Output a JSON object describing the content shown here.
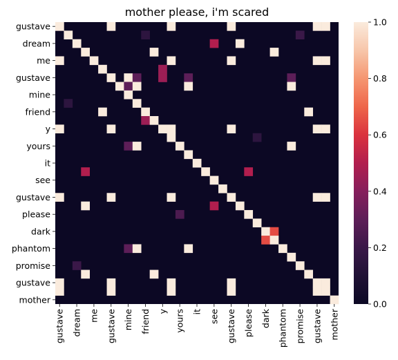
{
  "chart_data": {
    "type": "heatmap",
    "title": "mother please, i'm scared",
    "tokens": [
      "gustave",
      "dream",
      "me",
      "gustave",
      "mine",
      "friend",
      "y",
      "yours",
      "it",
      "see",
      "gustave",
      "please",
      "dark",
      "phantom",
      "promise",
      "gustave",
      "mother"
    ],
    "row_labels": [
      "gustave",
      "dream",
      "me",
      "gustave",
      "mine",
      "friend",
      "y",
      "yours",
      "it",
      "see",
      "gustave",
      "please",
      "dark",
      "phantom",
      "promise",
      "gustave",
      "mother"
    ],
    "col_labels": [
      "gustave",
      "dream",
      "me",
      "gustave",
      "mine",
      "friend",
      "y",
      "yours",
      "it",
      "see",
      "gustave",
      "please",
      "dark",
      "phantom",
      "promise",
      "gustave",
      "mother"
    ],
    "row_tick_step": 2,
    "col_tick_step": 2,
    "cells": [
      [
        0,
        0,
        1
      ],
      [
        0,
        6,
        1
      ],
      [
        0,
        13,
        1
      ],
      [
        0,
        20,
        1
      ],
      [
        0,
        30,
        1
      ],
      [
        0,
        31,
        1
      ],
      [
        1,
        1,
        1
      ],
      [
        1,
        10,
        0.15
      ],
      [
        1,
        28,
        0.2
      ],
      [
        2,
        2,
        1
      ],
      [
        2,
        18,
        0.5
      ],
      [
        2,
        21,
        1
      ],
      [
        3,
        3,
        1
      ],
      [
        3,
        11,
        1
      ],
      [
        3,
        25,
        1
      ],
      [
        4,
        0,
        1
      ],
      [
        4,
        4,
        1
      ],
      [
        4,
        13,
        1
      ],
      [
        4,
        20,
        1
      ],
      [
        4,
        30,
        1
      ],
      [
        4,
        31,
        1
      ],
      [
        5,
        5,
        1
      ],
      [
        5,
        12,
        0.45
      ],
      [
        6,
        6,
        1
      ],
      [
        6,
        8,
        1
      ],
      [
        6,
        9,
        0.3
      ],
      [
        6,
        12,
        0.45
      ],
      [
        6,
        15,
        0.3
      ],
      [
        6,
        27,
        0.3
      ],
      [
        7,
        7,
        1
      ],
      [
        7,
        8,
        0.3
      ],
      [
        7,
        9,
        1
      ],
      [
        7,
        15,
        1
      ],
      [
        7,
        27,
        1
      ],
      [
        8,
        8,
        1
      ],
      [
        9,
        1,
        0.15
      ],
      [
        9,
        9,
        1
      ],
      [
        10,
        5,
        1
      ],
      [
        10,
        10,
        1
      ],
      [
        10,
        29,
        1
      ],
      [
        11,
        10,
        0.45
      ],
      [
        11,
        11,
        1
      ],
      [
        12,
        0,
        1
      ],
      [
        12,
        6,
        1
      ],
      [
        12,
        12,
        1
      ],
      [
        12,
        13,
        1
      ],
      [
        12,
        20,
        1
      ],
      [
        12,
        30,
        1
      ],
      [
        12,
        31,
        1
      ],
      [
        13,
        13,
        1
      ],
      [
        13,
        23,
        0.15
      ],
      [
        14,
        8,
        0.3
      ],
      [
        14,
        9,
        1
      ],
      [
        14,
        14,
        1
      ],
      [
        14,
        27,
        1
      ],
      [
        15,
        15,
        1
      ],
      [
        16,
        16,
        1
      ],
      [
        17,
        3,
        0.5
      ],
      [
        17,
        17,
        1
      ],
      [
        17,
        22,
        0.5
      ],
      [
        18,
        18,
        1
      ],
      [
        19,
        19,
        1
      ],
      [
        20,
        0,
        1
      ],
      [
        20,
        6,
        1
      ],
      [
        20,
        13,
        1
      ],
      [
        20,
        20,
        1
      ],
      [
        20,
        30,
        1
      ],
      [
        20,
        31,
        1
      ],
      [
        21,
        3,
        1
      ],
      [
        21,
        18,
        0.5
      ],
      [
        21,
        21,
        1
      ],
      [
        22,
        14,
        0.25
      ],
      [
        22,
        22,
        1
      ],
      [
        23,
        23,
        1
      ],
      [
        24,
        24,
        1
      ],
      [
        24,
        25,
        0.65
      ],
      [
        25,
        24,
        0.65
      ],
      [
        25,
        25,
        1
      ],
      [
        26,
        8,
        0.3
      ],
      [
        26,
        9,
        1
      ],
      [
        26,
        15,
        1
      ],
      [
        26,
        26,
        1
      ],
      [
        27,
        27,
        1
      ],
      [
        28,
        2,
        0.2
      ],
      [
        28,
        28,
        1
      ],
      [
        29,
        3,
        1
      ],
      [
        29,
        11,
        1
      ],
      [
        29,
        29,
        1
      ],
      [
        30,
        0,
        1
      ],
      [
        30,
        6,
        1
      ],
      [
        30,
        13,
        1
      ],
      [
        30,
        20,
        1
      ],
      [
        30,
        30,
        1
      ],
      [
        30,
        31,
        1
      ],
      [
        31,
        0,
        1
      ],
      [
        31,
        6,
        1
      ],
      [
        31,
        13,
        1
      ],
      [
        31,
        20,
        1
      ],
      [
        31,
        30,
        1
      ],
      [
        31,
        31,
        1
      ],
      [
        32,
        32,
        1
      ]
    ],
    "colorbar": {
      "vmin": 0,
      "vmax": 1,
      "ticks": [
        "0.0",
        "0.2",
        "0.4",
        "0.6",
        "0.8",
        "1.0"
      ],
      "tick_values": [
        0,
        0.2,
        0.4,
        0.6,
        0.8,
        1.0
      ]
    },
    "colormap": "rocket",
    "xlabel": "",
    "ylabel": ""
  }
}
